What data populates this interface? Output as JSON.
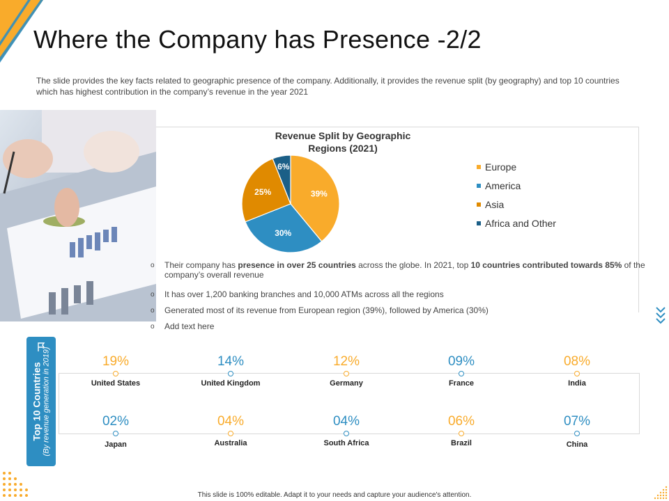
{
  "title": "Where the Company has Presence -2/2",
  "intro": "The slide provides  the key facts related to geographic  presence of the company. Additionally, it provides  the revenue  split (by geography) and top 10 countries which has highest contribution in the company’s revenue  in the year 2021",
  "chart_data": {
    "type": "pie",
    "title_line1": "Revenue Split by Geographic",
    "title_line2": "Regions (2021)",
    "slices": [
      {
        "name": "Europe",
        "value": 39,
        "label": "39%",
        "color": "#f9ab2b"
      },
      {
        "name": "America",
        "value": 30,
        "label": "30%",
        "color": "#2e8ec2"
      },
      {
        "name": "Asia",
        "value": 25,
        "label": "25%",
        "color": "#e08a00"
      },
      {
        "name": "Africa and Other",
        "value": 6,
        "label": "6%",
        "color": "#1b5f87"
      }
    ]
  },
  "bullets": [
    {
      "pre": "Their company has ",
      "b1": "presence in over 25 countries",
      "mid": " across the globe. In 2021, top ",
      "b2": "10 countries contributed towards 85%",
      "post": " of the company’s overall  revenue"
    },
    {
      "text": "It has over 1,200 banking branches and 10,000 ATMs across all the regions"
    },
    {
      "text": "Generated  most of its revenue  from European region (39%), followed  by America (30%)"
    },
    {
      "text": "Add text here"
    }
  ],
  "bullet_symbol": "o",
  "side_tab": {
    "title": "Top 10 Countries",
    "subtitle": "(By revenue generation in 2019)"
  },
  "countries_top": [
    {
      "pct": "19%",
      "name": "United States",
      "color": "#f9ab2b"
    },
    {
      "pct": "14%",
      "name": "United Kingdom",
      "color": "#2e8ec2"
    },
    {
      "pct": "12%",
      "name": "Germany",
      "color": "#f9ab2b"
    },
    {
      "pct": "09%",
      "name": "France",
      "color": "#2e8ec2"
    },
    {
      "pct": "08%",
      "name": "India",
      "color": "#f9ab2b"
    }
  ],
  "countries_bottom": [
    {
      "pct": "02%",
      "name": "Japan",
      "color": "#2e8ec2"
    },
    {
      "pct": "04%",
      "name": "Australia",
      "color": "#f9ab2b"
    },
    {
      "pct": "04%",
      "name": "South Africa",
      "color": "#2e8ec2"
    },
    {
      "pct": "06%",
      "name": "Brazil",
      "color": "#f9ab2b"
    },
    {
      "pct": "07%",
      "name": "China",
      "color": "#2e8ec2"
    }
  ],
  "footer": "This slide is 100% editable.  Adapt it to your needs and capture your audience's attention."
}
